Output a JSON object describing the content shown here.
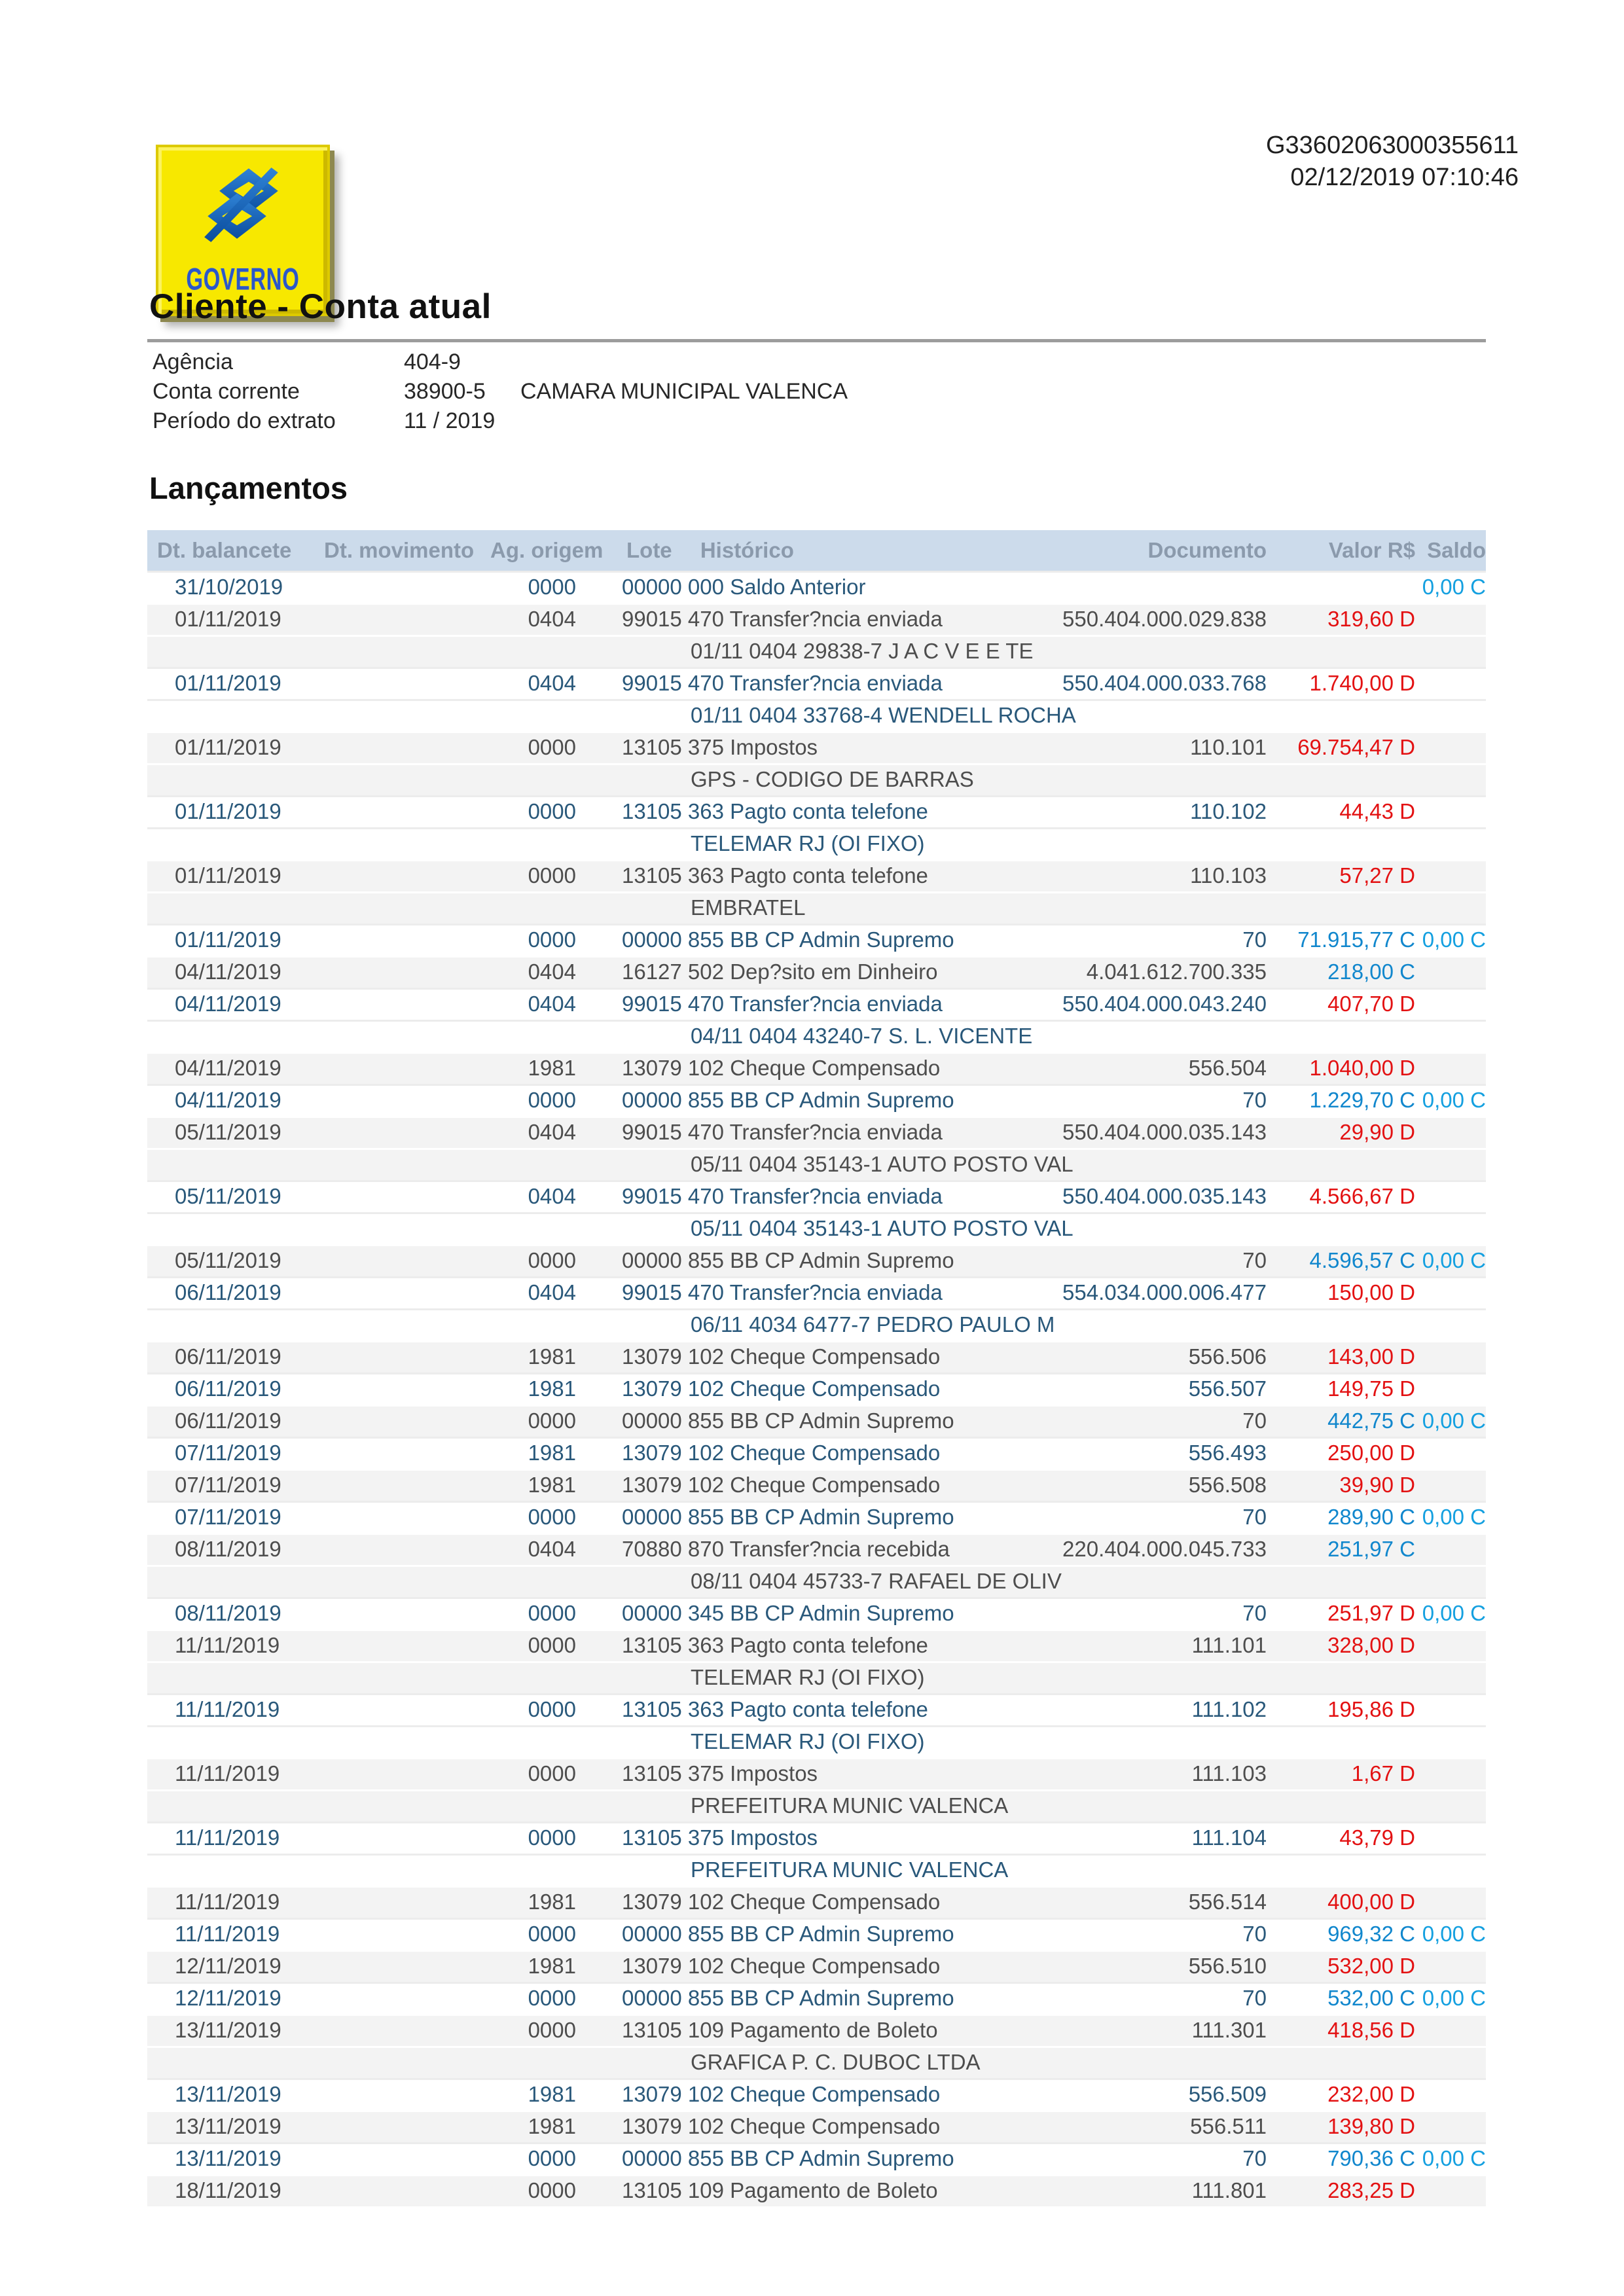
{
  "page": {
    "protocol": "G33602063000355611",
    "datetime": "02/12/2019 07:10:46"
  },
  "logo": {
    "brand": "banco-do-brasil",
    "label": "GOVERNO"
  },
  "title": "Cliente - Conta atual",
  "account": {
    "rows": [
      {
        "label": "Agência",
        "value": "404-9",
        "extra": ""
      },
      {
        "label": "Conta corrente",
        "value": "38900-5",
        "extra": "CAMARA MUNICIPAL VALENCA"
      },
      {
        "label": "Período do extrato",
        "value": "11 / 2019",
        "extra": ""
      }
    ]
  },
  "section_title": "Lançamentos",
  "table": {
    "columns": [
      "Dt. balancete",
      "Dt. movimento",
      "Ag. origem",
      "Lote",
      "Histórico",
      "Documento",
      "Valor R$",
      "Saldo"
    ],
    "transactions": [
      {
        "dt": "31/10/2019",
        "ag": "0000",
        "hist": "00000 000 Saldo Anterior",
        "doc": "",
        "valor": "",
        "vt": "",
        "saldo": "0,00 C",
        "detail": ""
      },
      {
        "dt": "01/11/2019",
        "ag": "0404",
        "hist": "99015 470 Transfer?ncia enviada",
        "doc": "550.404.000.029.838",
        "valor": "319,60 D",
        "vt": "debit",
        "saldo": "",
        "detail": "01/11 0404 29838-7 J A C V E E TE"
      },
      {
        "dt": "01/11/2019",
        "ag": "0404",
        "hist": "99015 470 Transfer?ncia enviada",
        "doc": "550.404.000.033.768",
        "valor": "1.740,00 D",
        "vt": "debit",
        "saldo": "",
        "detail": "01/11 0404 33768-4 WENDELL ROCHA"
      },
      {
        "dt": "01/11/2019",
        "ag": "0000",
        "hist": "13105 375 Impostos",
        "doc": "110.101",
        "valor": "69.754,47 D",
        "vt": "debit",
        "saldo": "",
        "detail": "GPS - CODIGO DE BARRAS"
      },
      {
        "dt": "01/11/2019",
        "ag": "0000",
        "hist": "13105 363 Pagto conta telefone",
        "doc": "110.102",
        "valor": "44,43 D",
        "vt": "debit",
        "saldo": "",
        "detail": "TELEMAR RJ (OI FIXO)"
      },
      {
        "dt": "01/11/2019",
        "ag": "0000",
        "hist": "13105 363 Pagto conta telefone",
        "doc": "110.103",
        "valor": "57,27 D",
        "vt": "debit",
        "saldo": "",
        "detail": "EMBRATEL"
      },
      {
        "dt": "01/11/2019",
        "ag": "0000",
        "hist": "00000 855 BB CP Admin Supremo",
        "doc": "70",
        "valor": "71.915,77 C",
        "vt": "credit",
        "saldo": "0,00 C",
        "detail": ""
      },
      {
        "dt": "04/11/2019",
        "ag": "0404",
        "hist": "16127 502 Dep?sito em Dinheiro",
        "doc": "4.041.612.700.335",
        "valor": "218,00 C",
        "vt": "credit",
        "saldo": "",
        "detail": ""
      },
      {
        "dt": "04/11/2019",
        "ag": "0404",
        "hist": "99015 470 Transfer?ncia enviada",
        "doc": "550.404.000.043.240",
        "valor": "407,70 D",
        "vt": "debit",
        "saldo": "",
        "detail": "04/11 0404 43240-7 S. L. VICENTE"
      },
      {
        "dt": "04/11/2019",
        "ag": "1981",
        "hist": "13079 102 Cheque Compensado",
        "doc": "556.504",
        "valor": "1.040,00 D",
        "vt": "debit",
        "saldo": "",
        "detail": ""
      },
      {
        "dt": "04/11/2019",
        "ag": "0000",
        "hist": "00000 855 BB CP Admin Supremo",
        "doc": "70",
        "valor": "1.229,70 C",
        "vt": "credit",
        "saldo": "0,00 C",
        "detail": ""
      },
      {
        "dt": "05/11/2019",
        "ag": "0404",
        "hist": "99015 470 Transfer?ncia enviada",
        "doc": "550.404.000.035.143",
        "valor": "29,90 D",
        "vt": "debit",
        "saldo": "",
        "detail": "05/11 0404 35143-1 AUTO POSTO VAL"
      },
      {
        "dt": "05/11/2019",
        "ag": "0404",
        "hist": "99015 470 Transfer?ncia enviada",
        "doc": "550.404.000.035.143",
        "valor": "4.566,67 D",
        "vt": "debit",
        "saldo": "",
        "detail": "05/11 0404 35143-1 AUTO POSTO VAL"
      },
      {
        "dt": "05/11/2019",
        "ag": "0000",
        "hist": "00000 855 BB CP Admin Supremo",
        "doc": "70",
        "valor": "4.596,57 C",
        "vt": "credit",
        "saldo": "0,00 C",
        "detail": ""
      },
      {
        "dt": "06/11/2019",
        "ag": "0404",
        "hist": "99015 470 Transfer?ncia enviada",
        "doc": "554.034.000.006.477",
        "valor": "150,00 D",
        "vt": "debit",
        "saldo": "",
        "detail": "06/11 4034 6477-7 PEDRO PAULO M"
      },
      {
        "dt": "06/11/2019",
        "ag": "1981",
        "hist": "13079 102 Cheque Compensado",
        "doc": "556.506",
        "valor": "143,00 D",
        "vt": "debit",
        "saldo": "",
        "detail": ""
      },
      {
        "dt": "06/11/2019",
        "ag": "1981",
        "hist": "13079 102 Cheque Compensado",
        "doc": "556.507",
        "valor": "149,75 D",
        "vt": "debit",
        "saldo": "",
        "detail": ""
      },
      {
        "dt": "06/11/2019",
        "ag": "0000",
        "hist": "00000 855 BB CP Admin Supremo",
        "doc": "70",
        "valor": "442,75 C",
        "vt": "credit",
        "saldo": "0,00 C",
        "detail": ""
      },
      {
        "dt": "07/11/2019",
        "ag": "1981",
        "hist": "13079 102 Cheque Compensado",
        "doc": "556.493",
        "valor": "250,00 D",
        "vt": "debit",
        "saldo": "",
        "detail": ""
      },
      {
        "dt": "07/11/2019",
        "ag": "1981",
        "hist": "13079 102 Cheque Compensado",
        "doc": "556.508",
        "valor": "39,90 D",
        "vt": "debit",
        "saldo": "",
        "detail": ""
      },
      {
        "dt": "07/11/2019",
        "ag": "0000",
        "hist": "00000 855 BB CP Admin Supremo",
        "doc": "70",
        "valor": "289,90 C",
        "vt": "credit",
        "saldo": "0,00 C",
        "detail": ""
      },
      {
        "dt": "08/11/2019",
        "ag": "0404",
        "hist": "70880 870 Transfer?ncia recebida",
        "doc": "220.404.000.045.733",
        "valor": "251,97 C",
        "vt": "credit",
        "saldo": "",
        "detail": "08/11 0404 45733-7 RAFAEL DE OLIV"
      },
      {
        "dt": "08/11/2019",
        "ag": "0000",
        "hist": "00000 345 BB CP Admin Supremo",
        "doc": "70",
        "valor": "251,97 D",
        "vt": "debit",
        "saldo": "0,00 C",
        "detail": ""
      },
      {
        "dt": "11/11/2019",
        "ag": "0000",
        "hist": "13105 363 Pagto conta telefone",
        "doc": "111.101",
        "valor": "328,00 D",
        "vt": "debit",
        "saldo": "",
        "detail": "TELEMAR RJ (OI FIXO)"
      },
      {
        "dt": "11/11/2019",
        "ag": "0000",
        "hist": "13105 363 Pagto conta telefone",
        "doc": "111.102",
        "valor": "195,86 D",
        "vt": "debit",
        "saldo": "",
        "detail": "TELEMAR RJ (OI FIXO)"
      },
      {
        "dt": "11/11/2019",
        "ag": "0000",
        "hist": "13105 375 Impostos",
        "doc": "111.103",
        "valor": "1,67 D",
        "vt": "debit",
        "saldo": "",
        "detail": "PREFEITURA MUNIC VALENCA"
      },
      {
        "dt": "11/11/2019",
        "ag": "0000",
        "hist": "13105 375 Impostos",
        "doc": "111.104",
        "valor": "43,79 D",
        "vt": "debit",
        "saldo": "",
        "detail": "PREFEITURA MUNIC VALENCA"
      },
      {
        "dt": "11/11/2019",
        "ag": "1981",
        "hist": "13079 102 Cheque Compensado",
        "doc": "556.514",
        "valor": "400,00 D",
        "vt": "debit",
        "saldo": "",
        "detail": ""
      },
      {
        "dt": "11/11/2019",
        "ag": "0000",
        "hist": "00000 855 BB CP Admin Supremo",
        "doc": "70",
        "valor": "969,32 C",
        "vt": "credit",
        "saldo": "0,00 C",
        "detail": ""
      },
      {
        "dt": "12/11/2019",
        "ag": "1981",
        "hist": "13079 102 Cheque Compensado",
        "doc": "556.510",
        "valor": "532,00 D",
        "vt": "debit",
        "saldo": "",
        "detail": ""
      },
      {
        "dt": "12/11/2019",
        "ag": "0000",
        "hist": "00000 855 BB CP Admin Supremo",
        "doc": "70",
        "valor": "532,00 C",
        "vt": "credit",
        "saldo": "0,00 C",
        "detail": ""
      },
      {
        "dt": "13/11/2019",
        "ag": "0000",
        "hist": "13105 109 Pagamento de Boleto",
        "doc": "111.301",
        "valor": "418,56 D",
        "vt": "debit",
        "saldo": "",
        "detail": "GRAFICA P. C. DUBOC LTDA"
      },
      {
        "dt": "13/11/2019",
        "ag": "1981",
        "hist": "13079 102 Cheque Compensado",
        "doc": "556.509",
        "valor": "232,00 D",
        "vt": "debit",
        "saldo": "",
        "detail": ""
      },
      {
        "dt": "13/11/2019",
        "ag": "1981",
        "hist": "13079 102 Cheque Compensado",
        "doc": "556.511",
        "valor": "139,80 D",
        "vt": "debit",
        "saldo": "",
        "detail": ""
      },
      {
        "dt": "13/11/2019",
        "ag": "0000",
        "hist": "00000 855 BB CP Admin Supremo",
        "doc": "70",
        "valor": "790,36 C",
        "vt": "credit",
        "saldo": "0,00 C",
        "detail": ""
      },
      {
        "dt": "18/11/2019",
        "ag": "0000",
        "hist": "13105 109 Pagamento de Boleto",
        "doc": "111.801",
        "valor": "283,25 D",
        "vt": "debit",
        "saldo": "",
        "detail": ""
      }
    ]
  },
  "colors": {
    "header_band": "#ccdbeb",
    "header_band_text": "#8b9aac",
    "stripe_gray": "#f3f3f3",
    "row_text_blue": "#29587a",
    "row_text_gray": "#4d4d4d",
    "debit_red": "#e31112",
    "credit_blue": "#1187cd",
    "saldo_blue": "#14a0e0",
    "rule_gray": "#9c9c9c",
    "logo_yellow": "#f7e800",
    "logo_blue": "#1d5fae",
    "governo_blue": "#2b57c8"
  }
}
